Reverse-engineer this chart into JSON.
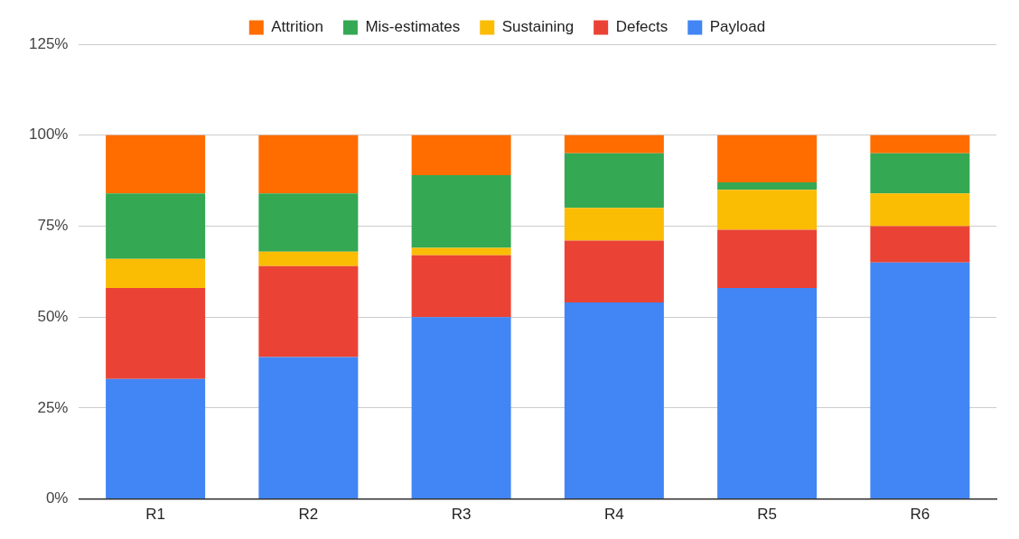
{
  "chart_data": {
    "type": "bar",
    "stacked": true,
    "categories": [
      "R1",
      "R2",
      "R3",
      "R4",
      "R5",
      "R6"
    ],
    "series": [
      {
        "name": "Payload",
        "color": "#4285f4",
        "values": [
          33,
          39,
          50,
          54,
          58,
          65
        ]
      },
      {
        "name": "Defects",
        "color": "#ea4335",
        "values": [
          25,
          25,
          17,
          17,
          16,
          10
        ]
      },
      {
        "name": "Sustaining",
        "color": "#fbbc04",
        "values": [
          8,
          4,
          2,
          9,
          11,
          9
        ]
      },
      {
        "name": "Mis-estimates",
        "color": "#34a853",
        "values": [
          18,
          16,
          20,
          15,
          2,
          11
        ]
      },
      {
        "name": "Attrition",
        "color": "#ff6d01",
        "values": [
          16,
          16,
          11,
          5,
          13,
          5
        ]
      }
    ],
    "ylim": [
      0,
      125
    ],
    "yticks": [
      {
        "value": 0,
        "label": "0%"
      },
      {
        "value": 25,
        "label": "25%"
      },
      {
        "value": 50,
        "label": "50%"
      },
      {
        "value": 75,
        "label": "75%"
      },
      {
        "value": 100,
        "label": "100%"
      },
      {
        "value": 125,
        "label": "125%"
      }
    ],
    "grid": "y",
    "legend": "top"
  }
}
